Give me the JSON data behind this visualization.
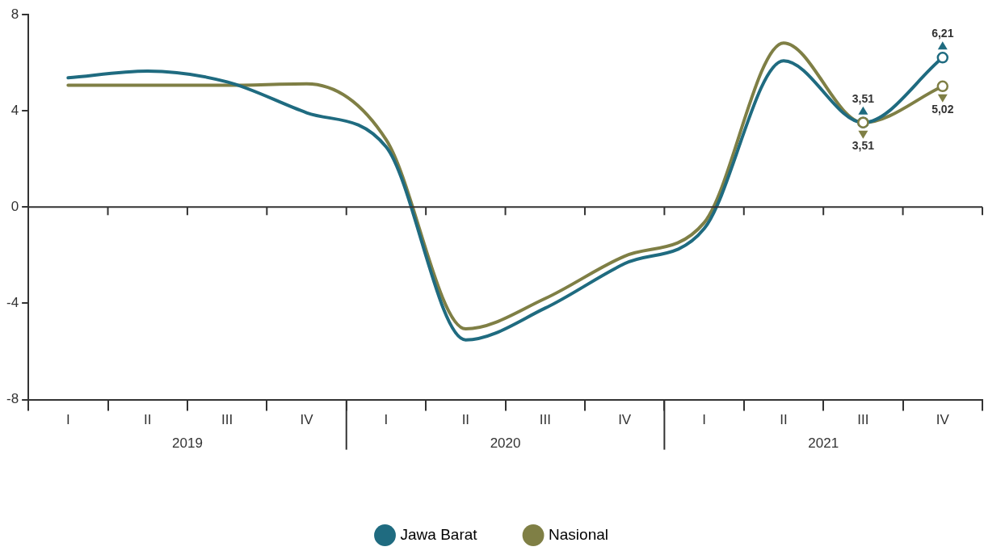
{
  "chart_data": {
    "type": "line",
    "categories": [
      "I",
      "II",
      "III",
      "IV",
      "I",
      "II",
      "III",
      "IV",
      "I",
      "II",
      "III",
      "IV"
    ],
    "series": [
      {
        "name": "Jawa Barat",
        "color": "#1f6b80",
        "values": [
          5.37,
          5.65,
          5.2,
          3.92,
          2.5,
          -5.52,
          -4.2,
          -2.35,
          -0.9,
          6.08,
          3.51,
          6.21
        ],
        "value_labels": [
          null,
          null,
          null,
          null,
          null,
          null,
          null,
          null,
          null,
          null,
          "3,51",
          "6,21"
        ]
      },
      {
        "name": "Nasional",
        "color": "#7f7f45",
        "values": [
          5.06,
          5.06,
          5.06,
          5.12,
          2.8,
          -5.06,
          -3.8,
          -2.04,
          -0.65,
          6.82,
          3.51,
          5.02
        ],
        "value_labels": [
          null,
          null,
          null,
          null,
          null,
          null,
          null,
          null,
          null,
          null,
          "3,51",
          "5,02"
        ]
      }
    ],
    "annotations": [
      "2019",
      "2020",
      "2021"
    ],
    "ylim": [
      -8,
      8
    ],
    "yticks": [
      -8,
      -4,
      0,
      4,
      8
    ],
    "ref_lines": [
      {
        "axis": "y",
        "value": 0,
        "color": "#333333",
        "line_style": "solid"
      }
    ],
    "grid": false,
    "legend": "bottom",
    "line_style": "solid"
  }
}
